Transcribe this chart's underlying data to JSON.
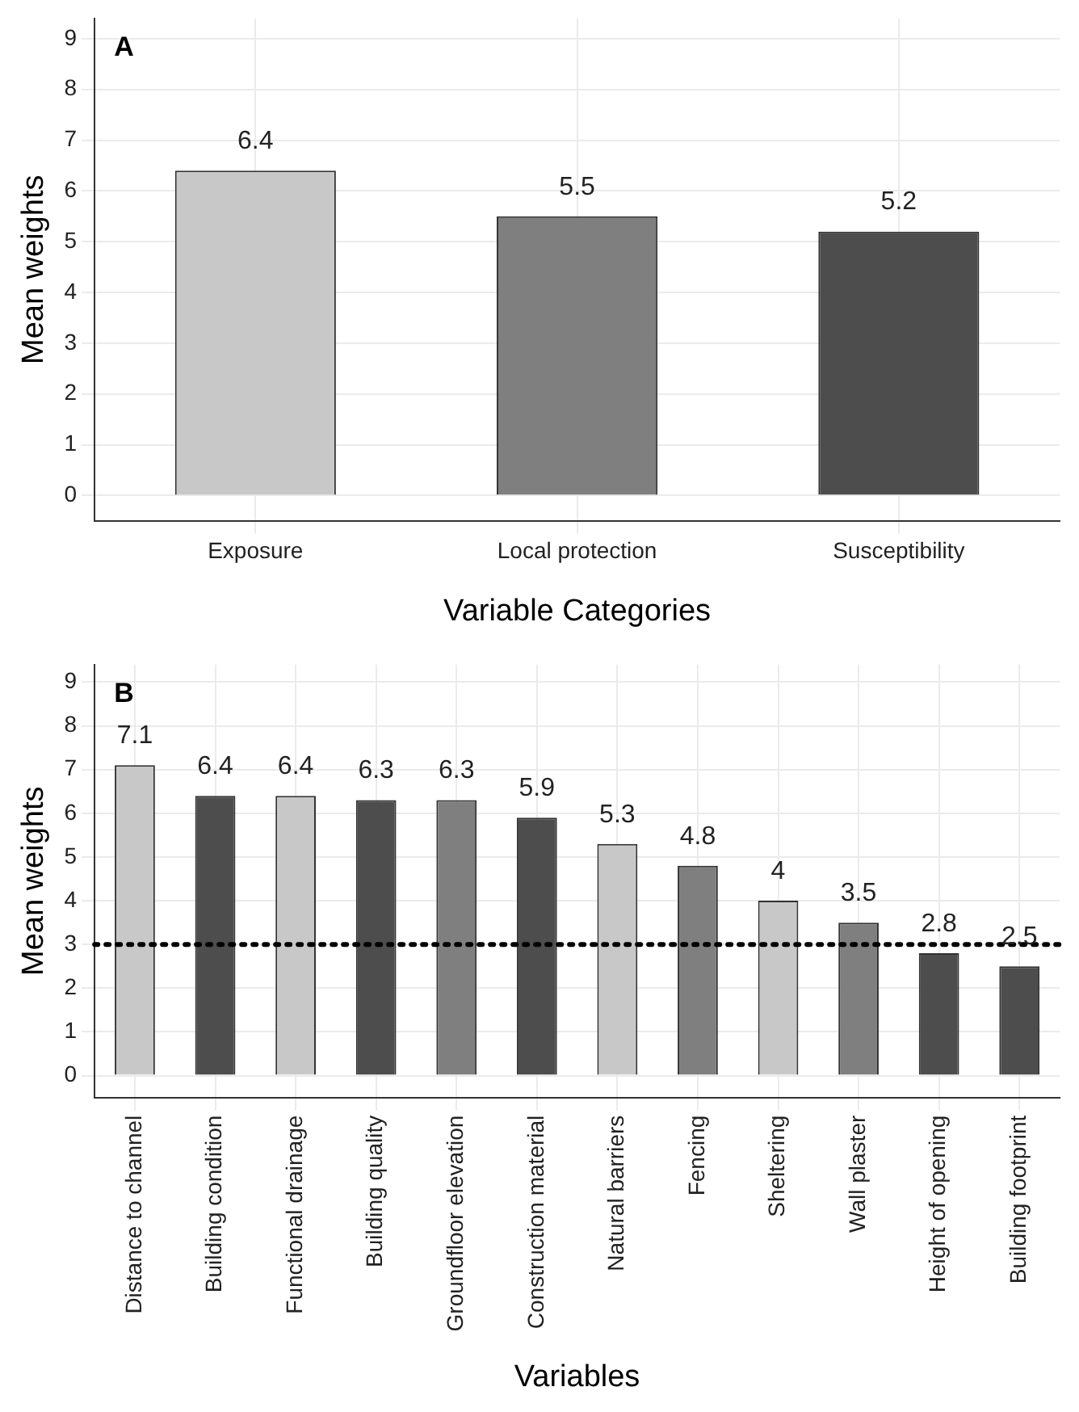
{
  "chart_data": [
    {
      "type": "bar",
      "annotations": [
        "A"
      ],
      "xlabel": "Variable Categories",
      "ylabel": "Mean weights",
      "categories": [
        "Exposure",
        "Local protection",
        "Susceptibility"
      ],
      "values": [
        6.4,
        5.5,
        5.2
      ],
      "colors": [
        "#c8c8c8",
        "#7f7f7f",
        "#4d4d4d"
      ],
      "ylim": [
        -0.5,
        9.4
      ],
      "yticks": [
        0,
        1,
        2,
        3,
        4,
        5,
        6,
        7,
        8,
        9
      ],
      "grid": true,
      "legend": false,
      "data_labels": true
    },
    {
      "type": "bar",
      "annotations": [
        "B"
      ],
      "xlabel": "Variables",
      "ylabel": "Mean weights",
      "categories": [
        "Distance to channel",
        "Building condition",
        "Functional drainage",
        "Building quality",
        "Groundfloor elevation",
        "Construction material",
        "Natural barriers",
        "Fencing",
        "Sheltering",
        "Wall plaster",
        "Height of opening",
        "Building footprint"
      ],
      "values": [
        7.1,
        6.4,
        6.4,
        6.3,
        6.3,
        5.9,
        5.3,
        4.8,
        4,
        3.5,
        2.8,
        2.5
      ],
      "colors": [
        "#c8c8c8",
        "#4d4d4d",
        "#c8c8c8",
        "#4d4d4d",
        "#7f7f7f",
        "#4d4d4d",
        "#c8c8c8",
        "#7f7f7f",
        "#c8c8c8",
        "#7f7f7f",
        "#4d4d4d",
        "#4d4d4d"
      ],
      "ylim": [
        -0.5,
        9.4
      ],
      "yticks": [
        0,
        1,
        2,
        3,
        4,
        5,
        6,
        7,
        8,
        9
      ],
      "grid": true,
      "legend": false,
      "data_labels": true,
      "ref_lines": [
        {
          "axis": "y",
          "value": 3,
          "color": "#000000",
          "line_style": "dotted"
        }
      ]
    }
  ]
}
